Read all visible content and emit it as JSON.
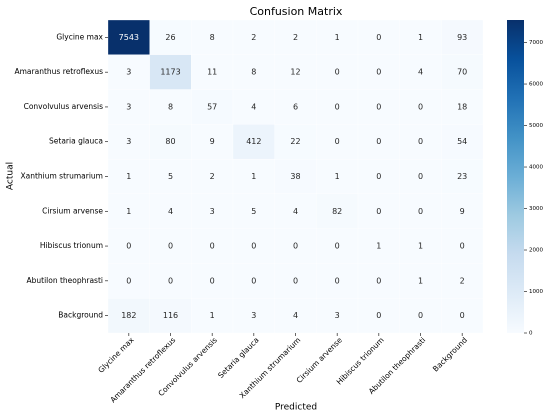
{
  "chart_data": {
    "type": "heatmap",
    "title": "Confusion Matrix",
    "x_label": "Predicted",
    "y_label": "Actual",
    "categories": [
      "Glycine max",
      "Amaranthus retroflexus",
      "Convolvulus arvensis",
      "Setaria glauca",
      "Xanthium strumarium",
      "Cirsium arvense",
      "Hibiscus trionum",
      "Abutilon theophrasti",
      "Background"
    ],
    "z": [
      [
        7543,
        26,
        8,
        2,
        2,
        1,
        0,
        1,
        93
      ],
      [
        3,
        1173,
        11,
        8,
        12,
        0,
        0,
        4,
        70
      ],
      [
        3,
        8,
        57,
        4,
        6,
        0,
        0,
        0,
        18
      ],
      [
        3,
        80,
        9,
        412,
        22,
        0,
        0,
        0,
        54
      ],
      [
        1,
        5,
        2,
        1,
        38,
        1,
        0,
        0,
        23
      ],
      [
        1,
        4,
        3,
        5,
        4,
        82,
        0,
        0,
        9
      ],
      [
        0,
        0,
        0,
        0,
        0,
        0,
        1,
        1,
        0
      ],
      [
        0,
        0,
        0,
        0,
        0,
        0,
        0,
        1,
        2
      ],
      [
        182,
        116,
        1,
        3,
        4,
        3,
        0,
        0,
        0
      ]
    ],
    "colormap": "Blues",
    "clim": [
      0,
      7543
    ],
    "cticks": [
      0,
      1000,
      2000,
      3000,
      4000,
      5000,
      6000,
      7000
    ]
  }
}
